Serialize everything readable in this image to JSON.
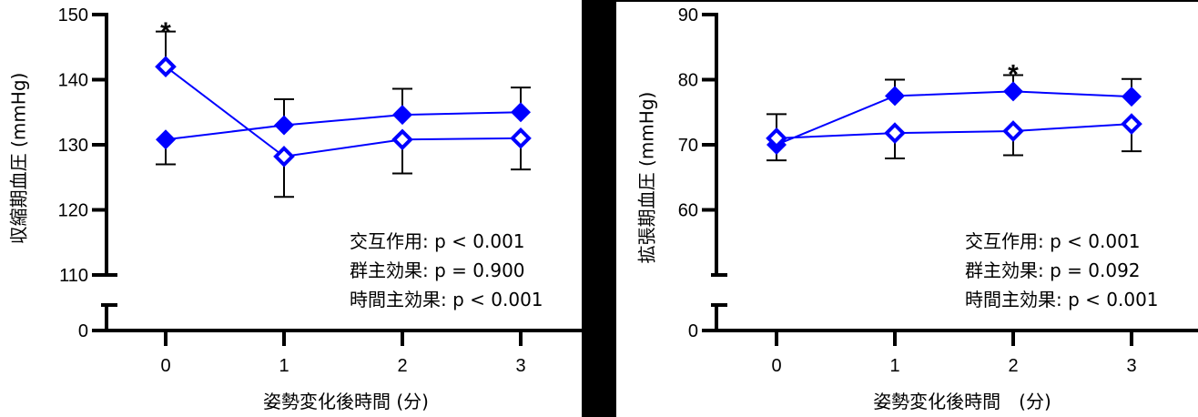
{
  "chart_data": [
    {
      "type": "line",
      "title": "",
      "xlabel": "姿勢変化後時間 (分)",
      "ylabel": "収縮期血圧 (mmHg)",
      "x": [
        0,
        1,
        2,
        3
      ],
      "x_tick_labels": [
        "0",
        "1",
        "2",
        "3"
      ],
      "y_tick_labels": [
        "0",
        "110",
        "120",
        "130",
        "140",
        "150"
      ],
      "ylim": [
        110,
        150
      ],
      "axis_break": {
        "lower": 0,
        "upper": 110
      },
      "grid": false,
      "legend": null,
      "series": [
        {
          "name": "filled-diamond",
          "marker": "filled-diamond",
          "color": "#0000ff",
          "values": [
            130.8,
            133.0,
            134.6,
            135.0
          ],
          "error_upper": [
            null,
            137.0,
            138.6,
            138.8
          ],
          "error_lower": [
            127.0,
            null,
            null,
            null
          ]
        },
        {
          "name": "open-diamond",
          "marker": "open-diamond",
          "color": "#0000ff",
          "values": [
            142.0,
            128.2,
            130.8,
            131.0
          ],
          "error_upper": [
            147.4,
            null,
            null,
            null
          ],
          "error_lower": [
            null,
            122.0,
            125.6,
            126.2
          ]
        }
      ],
      "annotations": [
        {
          "text": "*",
          "x": 0,
          "y": 149
        },
        {
          "text": "交互作用: p < 0.001"
        },
        {
          "text": "群主効果: p = 0.900"
        },
        {
          "text": "時間主効果: p < 0.001"
        }
      ]
    },
    {
      "type": "line",
      "title": "",
      "xlabel": "姿勢変化後時間　(分)",
      "ylabel": "拡張期血圧 (mmHg)",
      "x": [
        0,
        1,
        2,
        3
      ],
      "x_tick_labels": [
        "0",
        "1",
        "2",
        "3"
      ],
      "y_tick_labels": [
        "0",
        "60",
        "70",
        "80",
        "90"
      ],
      "ylim": [
        50,
        90
      ],
      "axis_break": {
        "lower": 0,
        "upper": 50
      },
      "grid": false,
      "legend": null,
      "series": [
        {
          "name": "filled-diamond",
          "marker": "filled-diamond",
          "color": "#0000ff",
          "values": [
            70.0,
            77.5,
            78.2,
            77.4
          ],
          "error_upper": [
            null,
            80.0,
            80.7,
            80.1
          ],
          "error_lower": [
            67.6,
            null,
            null,
            null
          ]
        },
        {
          "name": "open-diamond",
          "marker": "open-diamond",
          "color": "#0000ff",
          "values": [
            71.0,
            71.8,
            72.1,
            73.2
          ],
          "error_upper": [
            74.7,
            null,
            null,
            null
          ],
          "error_lower": [
            null,
            67.9,
            68.4,
            69.0
          ]
        }
      ],
      "annotations": [
        {
          "text": "*",
          "x": 2,
          "y": 82.5
        },
        {
          "text": "交互作用: p < 0.001"
        },
        {
          "text": "群主効果: p = 0.092"
        },
        {
          "text": "時間主効果: p < 0.001"
        }
      ]
    }
  ],
  "panels": [
    {
      "ylabel": "収縮期血圧 (mmHg)",
      "xlabel": "姿勢変化後時間 (分)",
      "stats": [
        "交互作用: p < 0.001",
        "群主効果: p = 0.900",
        "時間主効果: p < 0.001"
      ],
      "significance_marker": "*"
    },
    {
      "ylabel": "拡張期血圧 (mmHg)",
      "xlabel": "姿勢変化後時間　(分)",
      "stats": [
        "交互作用: p < 0.001",
        "群主効果: p = 0.092",
        "時間主効果: p < 0.001"
      ],
      "significance_marker": "*"
    }
  ]
}
